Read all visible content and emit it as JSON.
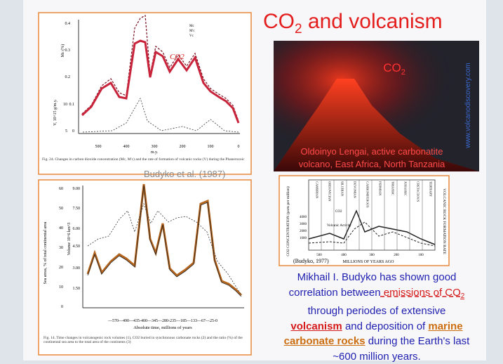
{
  "title": {
    "parts": [
      "CO",
      "2",
      " and volcanism"
    ]
  },
  "photo": {
    "label_parts": [
      "CO",
      "2"
    ],
    "caption_lines": [
      "Oldoinyo Lengai, active carbonatite",
      "volcano, East Africa, North Tanzania"
    ],
    "credit": "www.volcanodiscovery.com"
  },
  "figure_top": {
    "y_ticks_left": [
      "0.4",
      "0.3",
      "0.2",
      "0.1",
      "0"
    ],
    "y_ticks_v": [
      "10",
      "5"
    ],
    "y_title": "Mc (%)",
    "v_title": "V, 10^15 g/m.y.",
    "legend": [
      "Mc",
      "M'c",
      "Vc"
    ],
    "annotation": "CO2",
    "x_ticks": [
      "500",
      "400",
      "300",
      "200",
      "100",
      "0"
    ],
    "x_title": "m.y.",
    "caption": "Fig. 24. Changes in carbon dioxide concentration (Mc, M'c) and the rate of formation of volcanic rocks (V) during the Phanerozoic"
  },
  "citation_top": "Budyko et al. (1987)",
  "figure_bottom": {
    "y_ticks_left": [
      "60",
      "50",
      "40",
      "30",
      "20",
      "10",
      "0"
    ],
    "y_ticks_right": [
      "9.00",
      "7.50",
      "6.00",
      "4.50",
      "3.00",
      "1.50"
    ],
    "y_title_left": "Sea areas, % of total continental area",
    "y_title_right": "Volume 10^6 km^3",
    "x_ticks": "—570—490—435-400—345—280-235—185—133—67—25-0",
    "x_title": "Absolute time, millions of years",
    "caption": "Fig. 14. Time changes in volcanogenic rock volumes (1), CO2 buried in synchronous carbonate rocks (2) and the ratio (%) of the continental sea area to the total area of the continents (3)"
  },
  "figure_right": {
    "citation": "(Budyko, 1977)",
    "x_title": "MILLIONS OF YEARS AGO",
    "x_ticks": [
      "500",
      "400",
      "300",
      "200",
      "100"
    ],
    "y_title_left": "CO2 CONCENTRATION (parts per million)",
    "y_title_right": "VOLCANIC ROCK FORMATION RATE",
    "y_ticks": [
      "4000",
      "3000",
      "2000",
      "1000"
    ],
    "periods": [
      "CAMBRIAN",
      "ORDOVICIAN",
      "SILURIAN",
      "DEVONIAN",
      "CARBONIFEROUS",
      "PERMIAN",
      "TRIASSIC",
      "JURASSIC",
      "CRETACEOUS",
      "TERTIARY"
    ],
    "labels": [
      "CO2",
      "Volcanic Activity"
    ]
  },
  "paragraph": {
    "lines": [
      [
        {
          "text": "Mikhail I. Budyko has shown good",
          "style": "plain"
        }
      ],
      [
        {
          "text": "correlation between",
          "style": "plain"
        },
        {
          "text": " emissions of CO",
          "style": "red-dash"
        },
        {
          "text": "2",
          "style": "red-dash-sub"
        }
      ],
      [
        {
          "text": "through periodes of extensive",
          "style": "plain"
        }
      ],
      [
        {
          "text": "volcanism",
          "style": "red-bold"
        },
        {
          "text": " and deposition of ",
          "style": "plain"
        },
        {
          "text": "marine",
          "style": "orange-bold"
        }
      ],
      [
        {
          "text": "carbonate rocks",
          "style": "orange-bold"
        },
        {
          "text": " during the Earth's last",
          "style": "plain"
        }
      ],
      [
        {
          "text": "~600 million years.",
          "style": "plain"
        }
      ]
    ]
  }
}
